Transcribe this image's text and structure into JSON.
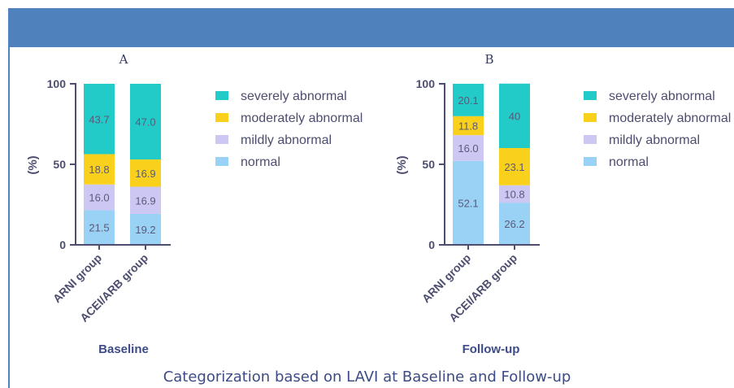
{
  "caption": "Categorization based on LAVI at Baseline and Follow-up",
  "colors": {
    "banner": "#4f81bd",
    "axis": "#4d4d70",
    "normal": "#9ad2f5",
    "mildly abnormal": "#cdc8f3",
    "moderately abnormal": "#f9d11c",
    "severely abnormal": "#22cac8"
  },
  "chart_data": [
    {
      "type": "bar",
      "stacked": true,
      "panel": "A",
      "xlabel": "Baseline",
      "ylabel": "(%)",
      "ylim": [
        0,
        100
      ],
      "yticks": [
        0,
        50,
        100
      ],
      "legend_position": "right",
      "categories": [
        "ARNI group",
        "ACEI/ARB group"
      ],
      "series": [
        {
          "name": "normal",
          "values": [
            21.5,
            19.2
          ],
          "labels": [
            "21.5",
            "19.2"
          ]
        },
        {
          "name": "mildly abnormal",
          "values": [
            16.0,
            16.9
          ],
          "labels": [
            "16.0",
            "16.9"
          ]
        },
        {
          "name": "moderately abnormal",
          "values": [
            18.8,
            16.9
          ],
          "labels": [
            "18.8",
            "16.9"
          ]
        },
        {
          "name": "severely abnormal",
          "values": [
            43.7,
            47.0
          ],
          "labels": [
            "43.7",
            "47.0"
          ]
        }
      ],
      "legend_order": [
        "severely abnormal",
        "moderately abnormal",
        "mildly abnormal",
        "normal"
      ]
    },
    {
      "type": "bar",
      "stacked": true,
      "panel": "B",
      "xlabel": "Follow-up",
      "ylabel": "(%)",
      "ylim": [
        0,
        100
      ],
      "yticks": [
        0,
        50,
        100
      ],
      "legend_position": "right",
      "categories": [
        "ARNI group",
        "ACEI/ARB group"
      ],
      "series": [
        {
          "name": "normal",
          "values": [
            52.1,
            26.2
          ],
          "labels": [
            "52.1",
            "26.2"
          ]
        },
        {
          "name": "mildly abnormal",
          "values": [
            16.0,
            10.8
          ],
          "labels": [
            "16.0",
            "10.8"
          ]
        },
        {
          "name": "moderately abnormal",
          "values": [
            11.8,
            23.1
          ],
          "labels": [
            "11.8",
            "23.1"
          ]
        },
        {
          "name": "severely abnormal",
          "values": [
            20.1,
            40
          ],
          "labels": [
            "20.1",
            "40"
          ]
        }
      ],
      "legend_order": [
        "severely abnormal",
        "moderately abnormal",
        "mildly abnormal",
        "normal"
      ]
    }
  ]
}
